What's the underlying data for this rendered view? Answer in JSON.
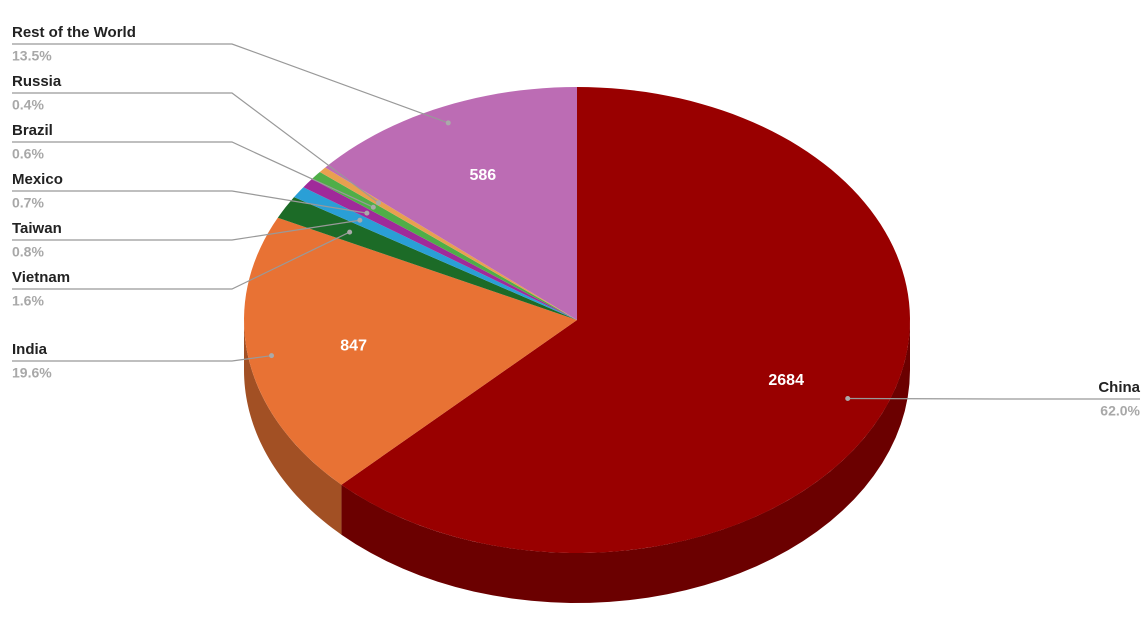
{
  "chart_data": {
    "type": "pie3d",
    "categories": [
      "China",
      "India",
      "Vietnam",
      "Taiwan",
      "Mexico",
      "Brazil",
      "Russia",
      "Rest of the World"
    ],
    "values": [
      2684,
      847,
      69,
      35,
      30,
      26,
      17,
      586
    ],
    "percent_labels": [
      "62.0%",
      "19.6%",
      "1.6%",
      "0.8%",
      "0.7%",
      "0.6%",
      "0.4%",
      "13.5%"
    ],
    "colors": [
      "#990000",
      "#e87234",
      "#1c6b27",
      "#2a9fd6",
      "#a02a9a",
      "#4fae48",
      "#e8a050",
      "#bc6cb4"
    ]
  }
}
